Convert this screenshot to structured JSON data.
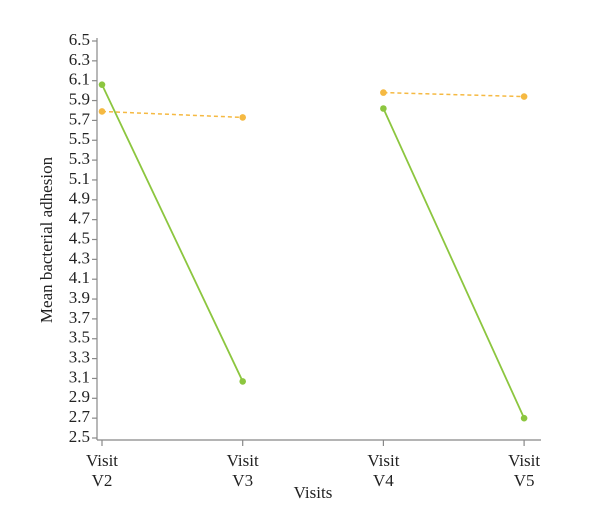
{
  "chart_data": {
    "type": "line",
    "y_label": "Mean bacterial adhesion",
    "x_label": "Visits",
    "categories": [
      [
        "Visit",
        "V2"
      ],
      [
        "Visit",
        "V3"
      ],
      [
        "Visit",
        "V4"
      ],
      [
        "Visit",
        "V5"
      ]
    ],
    "series": [
      {
        "color": "#f5b942",
        "dashed": true,
        "values": [
          5.79,
          5.73,
          null,
          null
        ]
      },
      {
        "color": "#f5b942",
        "dashed": true,
        "values": [
          null,
          null,
          5.98,
          5.94
        ]
      },
      {
        "color": "#8cc63f",
        "dashed": false,
        "values": [
          6.06,
          3.07,
          null,
          null
        ]
      },
      {
        "color": "#8cc63f",
        "dashed": false,
        "values": [
          null,
          null,
          5.82,
          2.7
        ]
      }
    ],
    "ylim": [
      2.5,
      6.5
    ],
    "yticks": [
      2.5,
      2.7,
      2.9,
      3.1,
      3.3,
      3.5,
      3.7,
      3.9,
      4.1,
      4.3,
      4.5,
      4.7,
      4.9,
      5.1,
      5.3,
      5.5,
      5.7,
      5.9,
      6.1,
      6.3,
      6.5
    ]
  }
}
